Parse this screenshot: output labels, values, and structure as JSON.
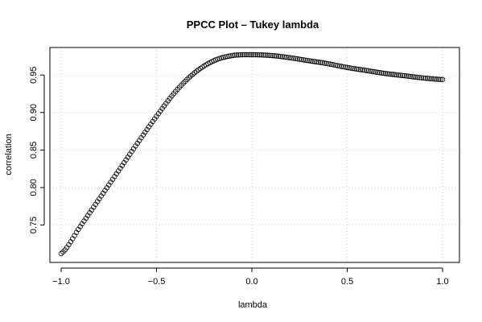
{
  "chart_data": {
    "type": "scatter",
    "title": "PPCC Plot – Tukey lambda",
    "xlabel": "lambda",
    "ylabel": "correlation",
    "xlim": [
      -1.0,
      1.0
    ],
    "ylim": [
      0.703,
      0.987
    ],
    "xticks": [
      -1.0,
      -0.5,
      0.0,
      0.5,
      1.0
    ],
    "xtick_labels": [
      "−1.0",
      "−0.5",
      "0.0",
      "0.5",
      "1.0"
    ],
    "yticks": [
      0.75,
      0.8,
      0.85,
      0.9,
      0.95
    ],
    "ytick_labels": [
      "0.75",
      "0.80",
      "0.85",
      "0.90",
      "0.95"
    ],
    "grid": true,
    "marker": "open-circle",
    "series": [
      {
        "x": [
          -1.0,
          -0.9,
          -0.8,
          -0.7,
          -0.6,
          -0.5,
          -0.4,
          -0.3,
          -0.2,
          -0.1,
          0.0,
          0.1,
          0.2,
          0.3,
          0.4,
          0.5,
          0.6,
          0.7,
          0.8,
          0.9,
          1.0
        ],
        "y": [
          0.712,
          0.748,
          0.785,
          0.822,
          0.859,
          0.895,
          0.928,
          0.953,
          0.969,
          0.976,
          0.977,
          0.976,
          0.973,
          0.969,
          0.965,
          0.96,
          0.956,
          0.952,
          0.949,
          0.946,
          0.944
        ]
      }
    ]
  }
}
